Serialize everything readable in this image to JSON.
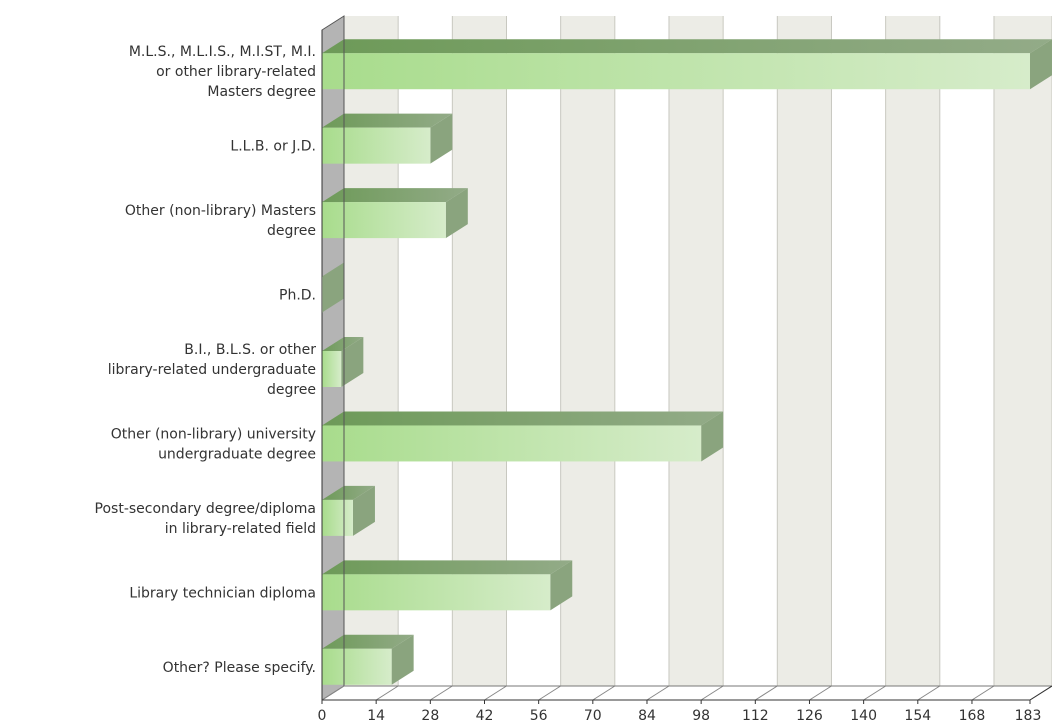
{
  "chart_data": {
    "type": "bar",
    "orientation": "horizontal",
    "categories": [
      [
        "M.L.S., M.L.I.S., M.I.ST, M.I.",
        "or other library-related",
        "Masters degree"
      ],
      [
        "L.L.B. or J.D."
      ],
      [
        "Other (non-library) Masters",
        "degree"
      ],
      [
        "Ph.D."
      ],
      [
        "B.I., B.L.S. or other",
        "library-related undergraduate",
        "degree"
      ],
      [
        "Other (non-library) university",
        "undergraduate degree"
      ],
      [
        "Post-secondary degree/diploma",
        "in library-related field"
      ],
      [
        "Library technician diploma"
      ],
      [
        "Other? Please specify."
      ]
    ],
    "values": [
      183,
      28,
      32,
      0,
      5,
      98,
      8,
      59,
      18
    ],
    "xlim": [
      0,
      183
    ],
    "xticks": [
      "0",
      "14",
      "28",
      "42",
      "56",
      "70",
      "84",
      "98",
      "112",
      "126",
      "140",
      "154",
      "168",
      "183"
    ],
    "grid": true,
    "style": "3d",
    "colors": {
      "bar_light": "#d2ebc4",
      "bar_mid": "#b3e09a",
      "bar_top": "#6f9a5c",
      "bar_side": "#8aa47e",
      "band_shaded": "#ecece6",
      "band_plain": "#ffffff",
      "wall": "#b4b4b4"
    }
  }
}
